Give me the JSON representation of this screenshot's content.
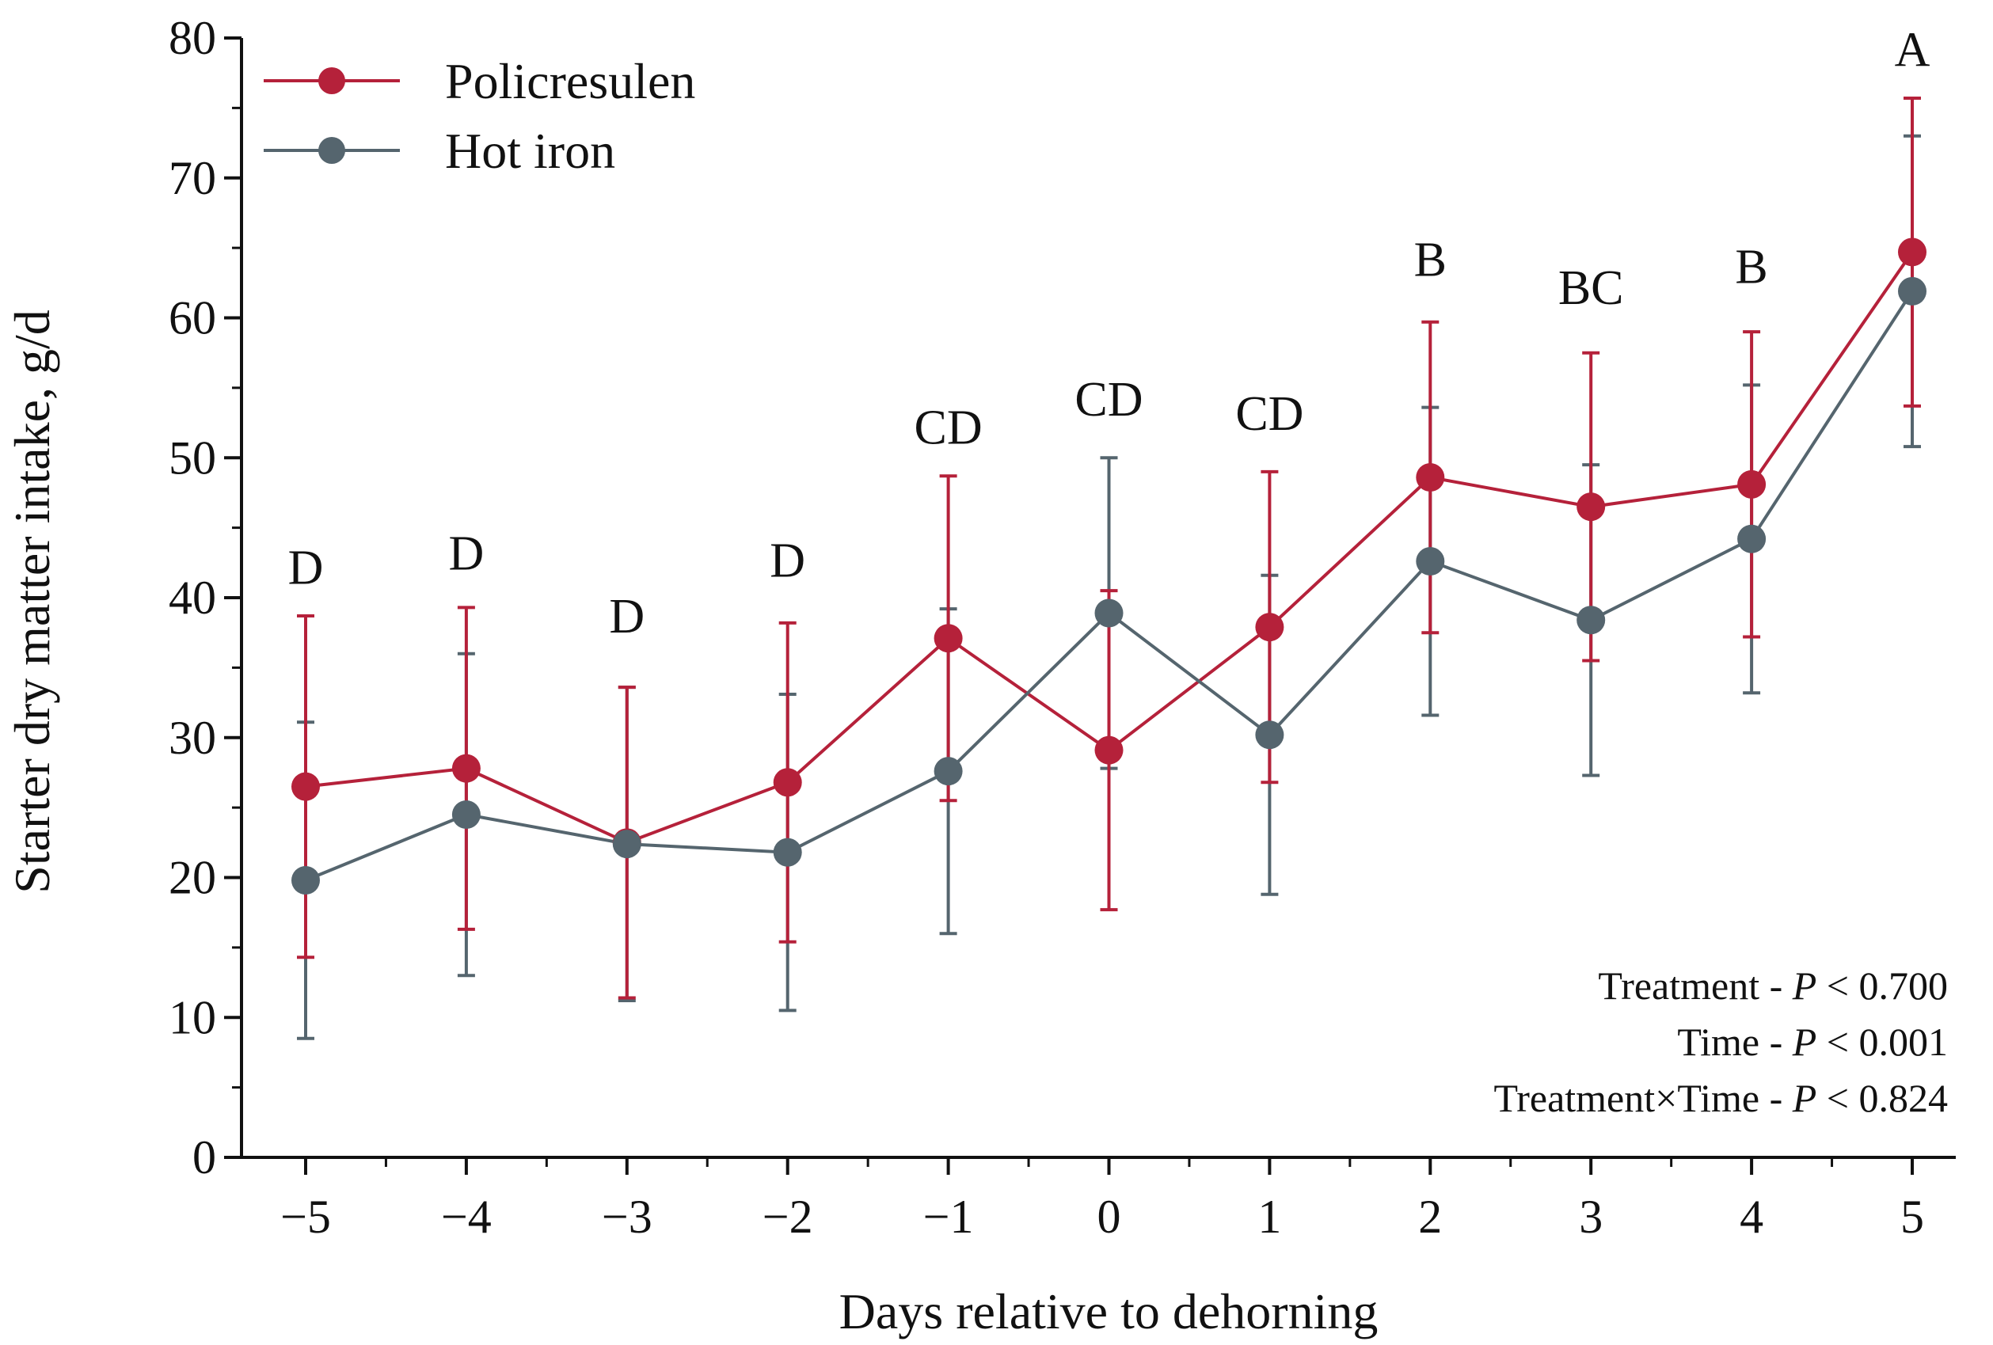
{
  "chart_data": {
    "type": "line",
    "xlabel": "Days relative to dehorning",
    "ylabel": "Starter dry matter intake, g/d",
    "ylim": [
      0,
      80
    ],
    "yticks": [
      0,
      10,
      20,
      30,
      40,
      50,
      60,
      70,
      80
    ],
    "x": [
      -5,
      -4,
      -3,
      -2,
      -1,
      0,
      1,
      2,
      3,
      4,
      5
    ],
    "x_tick_labels": [
      "−5",
      "−4",
      "−3",
      "−2",
      "−1",
      "0",
      "1",
      "2",
      "3",
      "4",
      "5"
    ],
    "series": [
      {
        "name": "Policresulen",
        "color": "#b5213a",
        "values": [
          26.5,
          27.8,
          22.5,
          26.8,
          37.1,
          29.1,
          37.9,
          48.6,
          46.5,
          48.1,
          64.7
        ],
        "error": [
          12.2,
          11.5,
          11.1,
          11.4,
          11.6,
          11.4,
          11.1,
          11.1,
          11.0,
          10.9,
          11.0
        ]
      },
      {
        "name": "Hot iron",
        "color": "#55656e",
        "values": [
          19.8,
          24.5,
          22.4,
          21.8,
          27.6,
          38.9,
          30.2,
          42.6,
          38.4,
          44.2,
          61.9
        ],
        "error": [
          11.3,
          11.5,
          11.2,
          11.3,
          11.6,
          11.1,
          11.4,
          11.0,
          11.1,
          11.0,
          11.1
        ]
      }
    ],
    "significance_letters": [
      "D",
      "D",
      "D",
      "D",
      "CD",
      "CD",
      "CD",
      "B",
      "BC",
      "B",
      "A"
    ],
    "letter_levels": [
      41,
      42,
      37.5,
      41.5,
      51,
      53,
      52,
      63,
      61,
      62.5,
      78
    ],
    "legend_position": "top-left",
    "stats": [
      "Treatment - ",
      "P",
      " < 0.700",
      "Time - ",
      "P",
      " < 0.001",
      "Treatment×Time - ",
      "P",
      " < 0.824"
    ]
  }
}
